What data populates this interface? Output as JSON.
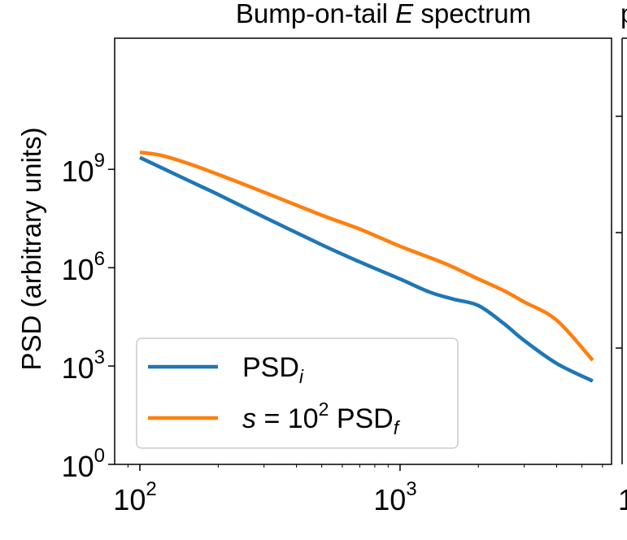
{
  "chart_data": {
    "type": "line",
    "title": {
      "prefix": "Bump-on-tail ",
      "italic": "E",
      "suffix": " spectrum"
    },
    "ylabel": "PSD (arbitrary units)",
    "xlabel": "",
    "x_scale": "log",
    "y_scale": "log",
    "xlim": [
      80,
      6500
    ],
    "ylim": [
      1,
      10000000000000
    ],
    "x_ticks": [
      {
        "value": 100,
        "base": "10",
        "exp": "2"
      },
      {
        "value": 1000,
        "base": "10",
        "exp": "3"
      }
    ],
    "y_ticks": [
      {
        "value": 1,
        "base": "10",
        "exp": "0"
      },
      {
        "value": 1000,
        "base": "10",
        "exp": "3"
      },
      {
        "value": 1000000,
        "base": "10",
        "exp": "6"
      },
      {
        "value": 1000000000,
        "base": "10",
        "exp": "9"
      }
    ],
    "grid": false,
    "legend_position": "lower-left",
    "series": [
      {
        "name": "PSD_i",
        "legend": {
          "main": "PSD",
          "sub": "i"
        },
        "color": "#1f77b4",
        "x": [
          100,
          150,
          200,
          300,
          500,
          700,
          1000,
          1300,
          1600,
          2000,
          2500,
          3000,
          4000,
          5500
        ],
        "y": [
          2300000000,
          500000000,
          170000000,
          35000000,
          5000000,
          1500000,
          450000,
          180000,
          110000,
          70000,
          20000,
          6000,
          1200,
          350
        ]
      },
      {
        "name": "s = 10^2 PSD_f",
        "legend": {
          "pre": "s = 10",
          "sup": "2",
          "main": " PSD",
          "sub": "f"
        },
        "color": "#ff7f0e",
        "x": [
          100,
          120,
          150,
          200,
          300,
          500,
          700,
          1000,
          1500,
          2000,
          2500,
          3000,
          4000,
          5500
        ],
        "y": [
          3300000000,
          2700000000,
          1600000000,
          700000000,
          200000000,
          40000000,
          15000000,
          4500000,
          1300000,
          450000,
          200000,
          90000,
          25000,
          1500
        ]
      }
    ],
    "neighbor_panel_partial": {
      "title_fragment": "p",
      "tick_fragment": "1"
    }
  }
}
